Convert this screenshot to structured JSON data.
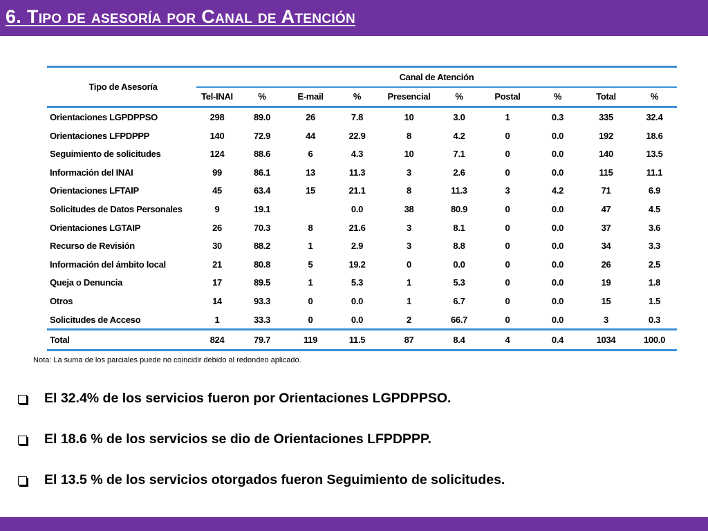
{
  "title": "6. Tipo de asesoría por Canal de Atención",
  "table": {
    "corner_header": "Tipo de Asesoría",
    "group_header": "Canal de Atención",
    "columns": [
      "Tel-INAI",
      "%",
      "E-mail",
      "%",
      "Presencial",
      "%",
      "Postal",
      "%",
      "Total",
      "%"
    ],
    "rows": [
      {
        "label": "Orientaciones LGPDPPSO",
        "values": [
          "298",
          "89.0",
          "26",
          "7.8",
          "10",
          "3.0",
          "1",
          "0.3",
          "335",
          "32.4"
        ]
      },
      {
        "label": "Orientaciones LFPDPPP",
        "values": [
          "140",
          "72.9",
          "44",
          "22.9",
          "8",
          "4.2",
          "0",
          "0.0",
          "192",
          "18.6"
        ]
      },
      {
        "label": "Seguimiento de solicitudes",
        "values": [
          "124",
          "88.6",
          "6",
          "4.3",
          "10",
          "7.1",
          "0",
          "0.0",
          "140",
          "13.5"
        ]
      },
      {
        "label": "Información del INAI",
        "values": [
          "99",
          "86.1",
          "13",
          "11.3",
          "3",
          "2.6",
          "0",
          "0.0",
          "115",
          "11.1"
        ]
      },
      {
        "label": "Orientaciones LFTAIP",
        "values": [
          "45",
          "63.4",
          "15",
          "21.1",
          "8",
          "11.3",
          "3",
          "4.2",
          "71",
          "6.9"
        ]
      },
      {
        "label": "Solicitudes de Datos Personales",
        "values": [
          "9",
          "19.1",
          "",
          "0.0",
          "38",
          "80.9",
          "0",
          "0.0",
          "47",
          "4.5"
        ]
      },
      {
        "label": "Orientaciones LGTAIP",
        "values": [
          "26",
          "70.3",
          "8",
          "21.6",
          "3",
          "8.1",
          "0",
          "0.0",
          "37",
          "3.6"
        ]
      },
      {
        "label": "Recurso de Revisión",
        "values": [
          "30",
          "88.2",
          "1",
          "2.9",
          "3",
          "8.8",
          "0",
          "0.0",
          "34",
          "3.3"
        ]
      },
      {
        "label": "Información del ámbito local",
        "values": [
          "21",
          "80.8",
          "5",
          "19.2",
          "0",
          "0.0",
          "0",
          "0.0",
          "26",
          "2.5"
        ]
      },
      {
        "label": "Queja o Denuncia",
        "values": [
          "17",
          "89.5",
          "1",
          "5.3",
          "1",
          "5.3",
          "0",
          "0.0",
          "19",
          "1.8"
        ]
      },
      {
        "label": "Otros",
        "values": [
          "14",
          "93.3",
          "0",
          "0.0",
          "1",
          "6.7",
          "0",
          "0.0",
          "15",
          "1.5"
        ]
      },
      {
        "label": "Solicitudes de Acceso",
        "values": [
          "1",
          "33.3",
          "0",
          "0.0",
          "2",
          "66.7",
          "0",
          "0.0",
          "3",
          "0.3"
        ]
      }
    ],
    "total": {
      "label": "Total",
      "values": [
        "824",
        "79.7",
        "119",
        "11.5",
        "87",
        "8.4",
        "4",
        "0.4",
        "1034",
        "100.0"
      ]
    }
  },
  "note": "Nota: La suma de los parciales puede no coincidir debido al redondeo aplicado.",
  "bullets": [
    "El 32.4% de los servicios fueron por Orientaciones LGPDPPSO.",
    "El 18.6 % de los servicios se dio de Orientaciones LFPDPPP.",
    "El 13.5 % de los servicios otorgados fueron Seguimiento de solicitudes."
  ],
  "colors": {
    "header_bar": "#6f31a0",
    "table_rule": "#3a8fd8"
  }
}
